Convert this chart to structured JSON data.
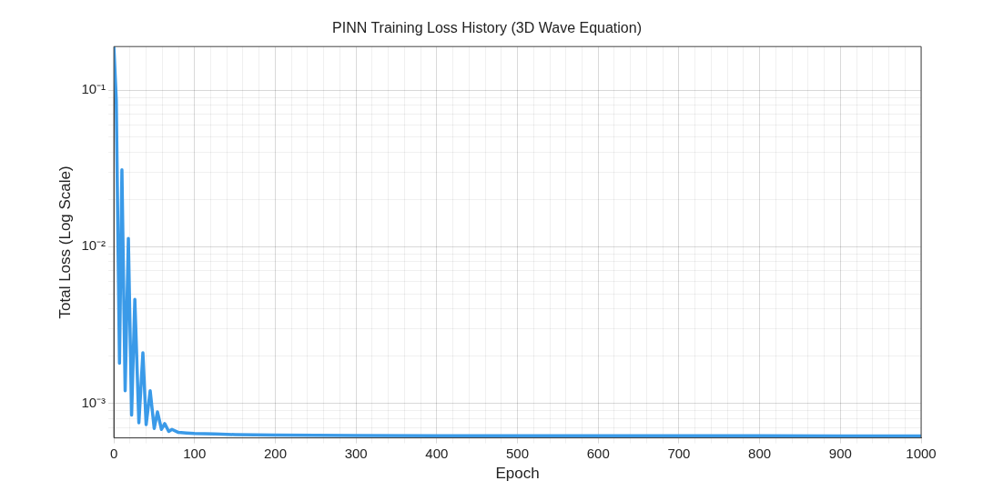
{
  "chart_data": {
    "type": "line",
    "title": "PINN Training Loss History (3D Wave Equation)",
    "xlabel": "Epoch",
    "ylabel": "Total Loss (Log Scale)",
    "log": "y",
    "grid": true,
    "line_style": "solid",
    "marker": "none",
    "x": [
      0,
      3,
      7,
      10,
      14,
      18,
      22,
      26,
      31,
      36,
      40,
      45,
      50,
      54,
      59,
      63,
      68,
      72,
      80,
      90,
      100,
      125,
      150,
      200,
      300,
      400,
      500,
      600,
      700,
      800,
      900,
      1000
    ],
    "series": [
      {
        "color": "#3a9ae8",
        "values": [
          0.19,
          0.086,
          0.0018,
          0.031,
          0.0012,
          0.0113,
          0.00084,
          0.0046,
          0.00075,
          0.0021,
          0.00073,
          0.0012,
          0.00069,
          0.00088,
          0.00068,
          0.00074,
          0.00066,
          0.00068,
          0.00065,
          0.000645,
          0.00064,
          0.000635,
          0.00063,
          0.000625,
          0.000622,
          0.00062,
          0.00062,
          0.00062,
          0.000619,
          0.000619,
          0.000618,
          0.000618
        ]
      }
    ],
    "xlim": [
      0,
      1000
    ],
    "ylim": [
      0.00061,
      0.19
    ],
    "xticks": [
      0,
      100,
      200,
      300,
      400,
      500,
      600,
      700,
      800,
      900,
      1000,
      {
        "value": 20,
        "label": null
      },
      {
        "value": 40,
        "label": null
      },
      {
        "value": 60,
        "label": null
      },
      {
        "value": 80,
        "label": null
      },
      {
        "value": 120,
        "label": null
      },
      {
        "value": 140,
        "label": null
      },
      {
        "value": 160,
        "label": null
      },
      {
        "value": 180,
        "label": null
      },
      {
        "value": 220,
        "label": null
      },
      {
        "value": 240,
        "label": null
      },
      {
        "value": 260,
        "label": null
      },
      {
        "value": 280,
        "label": null
      },
      {
        "value": 320,
        "label": null
      },
      {
        "value": 340,
        "label": null
      },
      {
        "value": 360,
        "label": null
      },
      {
        "value": 380,
        "label": null
      },
      {
        "value": 420,
        "label": null
      },
      {
        "value": 440,
        "label": null
      },
      {
        "value": 460,
        "label": null
      },
      {
        "value": 480,
        "label": null
      },
      {
        "value": 520,
        "label": null
      },
      {
        "value": 540,
        "label": null
      },
      {
        "value": 560,
        "label": null
      },
      {
        "value": 580,
        "label": null
      },
      {
        "value": 620,
        "label": null
      },
      {
        "value": 640,
        "label": null
      },
      {
        "value": 660,
        "label": null
      },
      {
        "value": 680,
        "label": null
      },
      {
        "value": 720,
        "label": null
      },
      {
        "value": 740,
        "label": null
      },
      {
        "value": 760,
        "label": null
      },
      {
        "value": 780,
        "label": null
      },
      {
        "value": 820,
        "label": null
      },
      {
        "value": 840,
        "label": null
      },
      {
        "value": 860,
        "label": null
      },
      {
        "value": 880,
        "label": null
      },
      {
        "value": 920,
        "label": null
      },
      {
        "value": 940,
        "label": null
      },
      {
        "value": 960,
        "label": null
      },
      {
        "value": 980,
        "label": null
      }
    ],
    "yticks": [
      {
        "value": 0.001,
        "label": "10⁻³"
      },
      {
        "value": 0.01,
        "label": "10⁻²"
      },
      {
        "value": 0.1,
        "label": "10⁻¹"
      },
      {
        "value": 0.0007,
        "label": null
      },
      {
        "value": 0.0008,
        "label": null
      },
      {
        "value": 0.0009,
        "label": null
      },
      {
        "value": 0.002,
        "label": null
      },
      {
        "value": 0.003,
        "label": null
      },
      {
        "value": 0.004,
        "label": null
      },
      {
        "value": 0.005,
        "label": null
      },
      {
        "value": 0.006,
        "label": null
      },
      {
        "value": 0.007,
        "label": null
      },
      {
        "value": 0.008,
        "label": null
      },
      {
        "value": 0.009,
        "label": null
      },
      {
        "value": 0.02,
        "label": null
      },
      {
        "value": 0.03,
        "label": null
      },
      {
        "value": 0.04,
        "label": null
      },
      {
        "value": 0.05,
        "label": null
      },
      {
        "value": 0.06,
        "label": null
      },
      {
        "value": 0.07,
        "label": null
      },
      {
        "value": 0.08,
        "label": null
      },
      {
        "value": 0.09,
        "label": null
      }
    ]
  }
}
